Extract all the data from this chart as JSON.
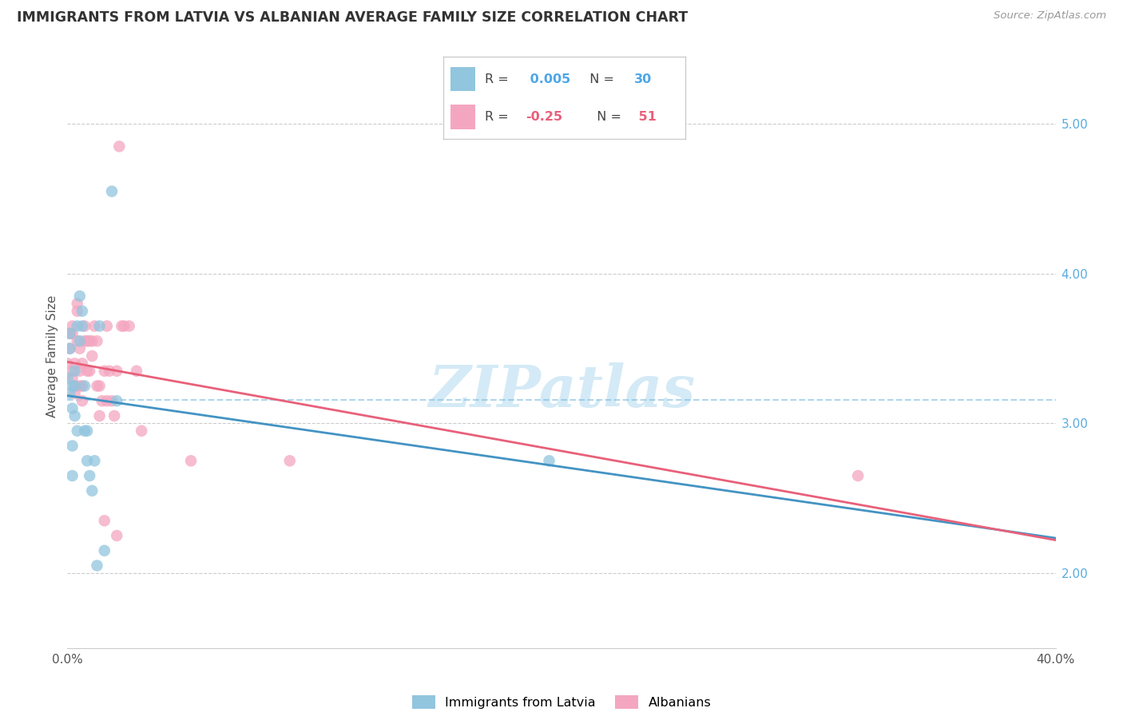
{
  "title": "IMMIGRANTS FROM LATVIA VS ALBANIAN AVERAGE FAMILY SIZE CORRELATION CHART",
  "source": "Source: ZipAtlas.com",
  "ylabel": "Average Family Size",
  "yticks": [
    2.0,
    3.0,
    4.0,
    5.0
  ],
  "xlim": [
    0.0,
    0.4
  ],
  "ylim": [
    1.5,
    5.4
  ],
  "latvia_R": 0.005,
  "latvia_N": 30,
  "albanian_R": -0.25,
  "albanian_N": 51,
  "latvia_color": "#92c5de",
  "albanian_color": "#f4a6c0",
  "latvia_line_color": "#4393c3",
  "albanian_line_color": "#e8607a",
  "latvia_line_color_dashed": "#7bbcde",
  "watermark_color": "#d0e8f5",
  "latvia_x": [
    0.0,
    0.001,
    0.001,
    0.001,
    0.002,
    0.002,
    0.002,
    0.002,
    0.003,
    0.003,
    0.003,
    0.004,
    0.004,
    0.005,
    0.005,
    0.006,
    0.006,
    0.007,
    0.007,
    0.008,
    0.008,
    0.009,
    0.01,
    0.011,
    0.012,
    0.013,
    0.015,
    0.018,
    0.02,
    0.195
  ],
  "latvia_y": [
    3.3,
    3.5,
    3.2,
    3.6,
    3.25,
    3.1,
    2.85,
    2.65,
    3.35,
    3.25,
    3.05,
    3.65,
    2.95,
    3.55,
    3.85,
    3.75,
    3.65,
    3.25,
    2.95,
    2.95,
    2.75,
    2.65,
    2.55,
    2.75,
    2.05,
    3.65,
    2.15,
    4.55,
    3.15,
    2.75
  ],
  "albanian_x": [
    0.0,
    0.001,
    0.001,
    0.002,
    0.002,
    0.002,
    0.002,
    0.003,
    0.003,
    0.003,
    0.004,
    0.004,
    0.004,
    0.005,
    0.005,
    0.005,
    0.006,
    0.006,
    0.006,
    0.007,
    0.007,
    0.008,
    0.008,
    0.009,
    0.009,
    0.01,
    0.01,
    0.011,
    0.012,
    0.012,
    0.013,
    0.013,
    0.014,
    0.015,
    0.015,
    0.016,
    0.016,
    0.017,
    0.018,
    0.019,
    0.02,
    0.02,
    0.021,
    0.022,
    0.023,
    0.025,
    0.028,
    0.03,
    0.05,
    0.09,
    0.32
  ],
  "albanian_y": [
    3.4,
    3.5,
    3.6,
    3.3,
    3.35,
    3.6,
    3.65,
    3.25,
    3.4,
    3.2,
    3.8,
    3.75,
    3.55,
    3.5,
    3.35,
    3.25,
    3.4,
    3.25,
    3.15,
    3.65,
    3.55,
    3.55,
    3.35,
    3.55,
    3.35,
    3.45,
    3.55,
    3.65,
    3.55,
    3.25,
    3.25,
    3.05,
    3.15,
    3.35,
    2.35,
    3.65,
    3.15,
    3.35,
    3.15,
    3.05,
    2.25,
    3.35,
    4.85,
    3.65,
    3.65,
    3.65,
    3.35,
    2.95,
    2.75,
    2.75,
    2.65
  ],
  "xtick_positions": [
    0.0,
    0.08,
    0.16,
    0.24,
    0.32,
    0.4
  ],
  "xtick_labels": [
    "0.0%",
    "",
    "",
    "",
    "",
    "40.0%"
  ]
}
